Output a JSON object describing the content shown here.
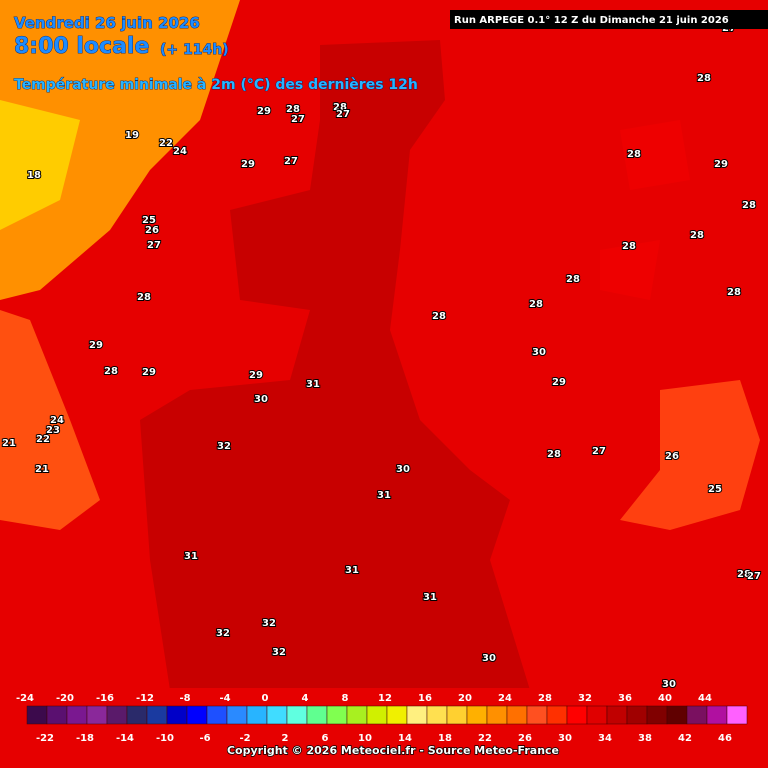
{
  "header": {
    "date": "Vendredi 26 juin 2026",
    "time": "8:00 locale",
    "lead": "(+ 114h)",
    "title": "Température minimale à 2m (°C) des dernières 12h",
    "run": "Run ARPEGE 0.1° 12 Z du Dimanche 21 juin 2026"
  },
  "map": {
    "labels": [
      29,
      28,
      28,
      27,
      27,
      19,
      22,
      24,
      18,
      29,
      27,
      25,
      26,
      27,
      28,
      29,
      28,
      29,
      29,
      31,
      30,
      24,
      23,
      22,
      21,
      21,
      32,
      30,
      31,
      31,
      31,
      31,
      32,
      32,
      32,
      30,
      30,
      29,
      28,
      28,
      29,
      28,
      28,
      28,
      28,
      28,
      28,
      28,
      30,
      29,
      28,
      27,
      26,
      25,
      28,
      27,
      27
    ]
  },
  "legend": {
    "ticks": [
      -24,
      -22,
      -20,
      -18,
      -16,
      -14,
      -12,
      -10,
      -8,
      -6,
      -4,
      -2,
      0,
      2,
      4,
      6,
      8,
      10,
      12,
      14,
      16,
      18,
      20,
      22,
      24,
      26,
      28,
      30,
      32,
      34,
      36,
      38,
      40,
      42,
      44,
      46
    ],
    "colors": [
      "#3c0a4c",
      "#5a1070",
      "#7a1890",
      "#8a289a",
      "#5a1a6a",
      "#2a2a6a",
      "#1a3aa0",
      "#0000c8",
      "#0000ff",
      "#1e50ff",
      "#2a8aff",
      "#28b4ff",
      "#40dcff",
      "#60ffe0",
      "#60ff90",
      "#80ff50",
      "#a8f020",
      "#d0f000",
      "#f0f000",
      "#fff080",
      "#ffe050",
      "#ffd030",
      "#ffb000",
      "#ff9000",
      "#ff7000",
      "#ff5020",
      "#ff3000",
      "#ff0000",
      "#e00000",
      "#c00000",
      "#a00000",
      "#800000",
      "#600000",
      "#7a1060",
      "#b010a0",
      "#ff60ff"
    ]
  },
  "footer": {
    "copyright": "Copyright © 2026 Meteociel.fr - Source Meteo-France"
  }
}
